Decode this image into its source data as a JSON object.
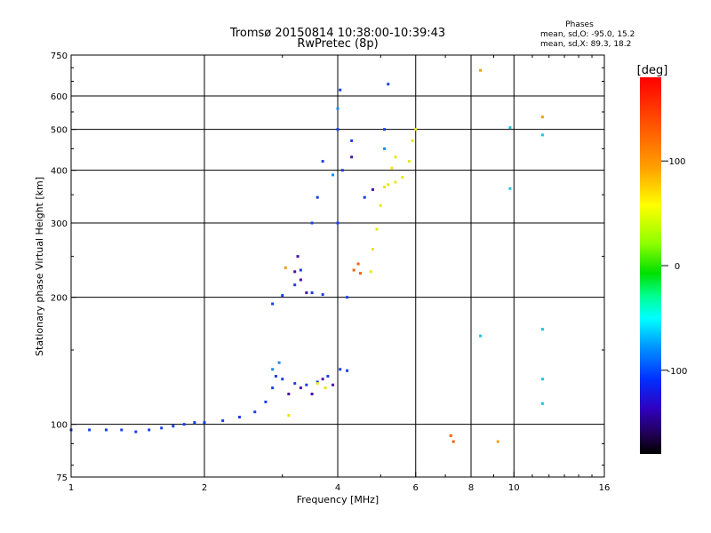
{
  "chart_data": {
    "type": "scatter",
    "title": "Tromsø 20150814 10:38:00-10:39:43",
    "subtitle": "RwPretec (8p)",
    "xlabel": "Frequency [MHz]",
    "ylabel": "Stationary phase Virtual Height [km]",
    "x_scale": "log2",
    "y_scale": "log",
    "xlim": [
      1,
      16
    ],
    "ylim": [
      75,
      750
    ],
    "x_ticks": [
      1,
      2,
      4,
      6,
      8,
      10,
      16
    ],
    "y_ticks": [
      75,
      100,
      200,
      300,
      400,
      500,
      600,
      750
    ],
    "grid": true,
    "phases_info": {
      "heading": "Phases",
      "line_o": "mean, sd,O: -95.0, 15.2",
      "line_x": "mean, sd,X:  89.3, 18.2"
    },
    "colorbar": {
      "label": "[deg]",
      "range": [
        -180,
        180
      ],
      "ticks": [
        100,
        0,
        -100
      ],
      "tick_labels": [
        "100",
        "0",
        "-100"
      ]
    },
    "series": [
      {
        "phase_deg": -95,
        "color": "#1a3fe8",
        "points": [
          [
            1.0,
            97
          ],
          [
            1.1,
            97
          ],
          [
            1.2,
            97
          ],
          [
            1.3,
            97
          ],
          [
            1.4,
            96
          ],
          [
            1.5,
            97
          ],
          [
            1.6,
            98
          ],
          [
            1.7,
            99
          ],
          [
            1.8,
            100
          ],
          [
            1.9,
            101
          ],
          [
            2.0,
            101
          ],
          [
            2.2,
            102
          ],
          [
            2.4,
            104
          ],
          [
            2.6,
            107
          ],
          [
            2.75,
            113
          ],
          [
            2.85,
            122
          ],
          [
            2.9,
            130
          ],
          [
            3.0,
            128
          ],
          [
            3.2,
            125
          ],
          [
            3.4,
            124
          ],
          [
            3.6,
            126
          ],
          [
            3.8,
            130
          ],
          [
            4.05,
            135
          ],
          [
            4.2,
            134
          ],
          [
            2.85,
            193
          ],
          [
            3.0,
            202
          ],
          [
            3.2,
            214
          ],
          [
            3.3,
            232
          ],
          [
            3.5,
            205
          ],
          [
            3.7,
            203
          ],
          [
            4.0,
            300
          ],
          [
            4.0,
            500
          ],
          [
            4.05,
            620
          ],
          [
            4.1,
            400
          ],
          [
            4.3,
            470
          ],
          [
            4.6,
            345
          ],
          [
            5.1,
            500
          ],
          [
            5.2,
            640
          ],
          [
            4.2,
            200
          ],
          [
            3.5,
            300
          ],
          [
            3.6,
            345
          ],
          [
            3.7,
            420
          ]
        ]
      },
      {
        "phase_deg": -120,
        "color": "#4a10a8",
        "points": [
          [
            3.2,
            230
          ],
          [
            3.25,
            250
          ],
          [
            3.3,
            220
          ],
          [
            3.4,
            205
          ],
          [
            3.1,
            118
          ],
          [
            3.3,
            122
          ],
          [
            3.5,
            118
          ],
          [
            3.7,
            128
          ],
          [
            3.9,
            124
          ],
          [
            4.3,
            430
          ],
          [
            4.8,
            360
          ]
        ]
      },
      {
        "phase_deg": -80,
        "color": "#1a8cf0",
        "points": [
          [
            2.85,
            135
          ],
          [
            2.95,
            140
          ],
          [
            4.0,
            560
          ],
          [
            3.9,
            390
          ],
          [
            5.1,
            450
          ]
        ]
      },
      {
        "phase_deg": 95,
        "color": "#e8e810",
        "points": [
          [
            3.1,
            105
          ],
          [
            3.6,
            125
          ],
          [
            3.75,
            122
          ],
          [
            4.75,
            230
          ],
          [
            4.8,
            260
          ],
          [
            4.9,
            290
          ],
          [
            5.0,
            330
          ],
          [
            5.1,
            365
          ],
          [
            5.2,
            370
          ],
          [
            5.4,
            375
          ],
          [
            5.6,
            385
          ],
          [
            5.8,
            420
          ],
          [
            5.9,
            470
          ],
          [
            6.0,
            500
          ],
          [
            5.3,
            405
          ],
          [
            5.4,
            430
          ]
        ]
      },
      {
        "phase_deg": 150,
        "color": "#f06010",
        "points": [
          [
            4.35,
            232
          ],
          [
            4.45,
            240
          ],
          [
            4.5,
            228
          ],
          [
            7.2,
            94
          ],
          [
            7.3,
            91
          ]
        ]
      },
      {
        "phase_deg": 120,
        "color": "#f0a010",
        "points": [
          [
            8.4,
            690
          ],
          [
            11.6,
            535
          ],
          [
            3.05,
            235
          ],
          [
            9.2,
            91
          ]
        ]
      },
      {
        "phase_deg": -55,
        "color": "#20c0e0",
        "points": [
          [
            9.8,
            505
          ],
          [
            8.4,
            162
          ],
          [
            11.6,
            485
          ],
          [
            11.6,
            168
          ],
          [
            11.6,
            128
          ],
          [
            11.6,
            112
          ],
          [
            9.8,
            362
          ]
        ]
      }
    ]
  }
}
